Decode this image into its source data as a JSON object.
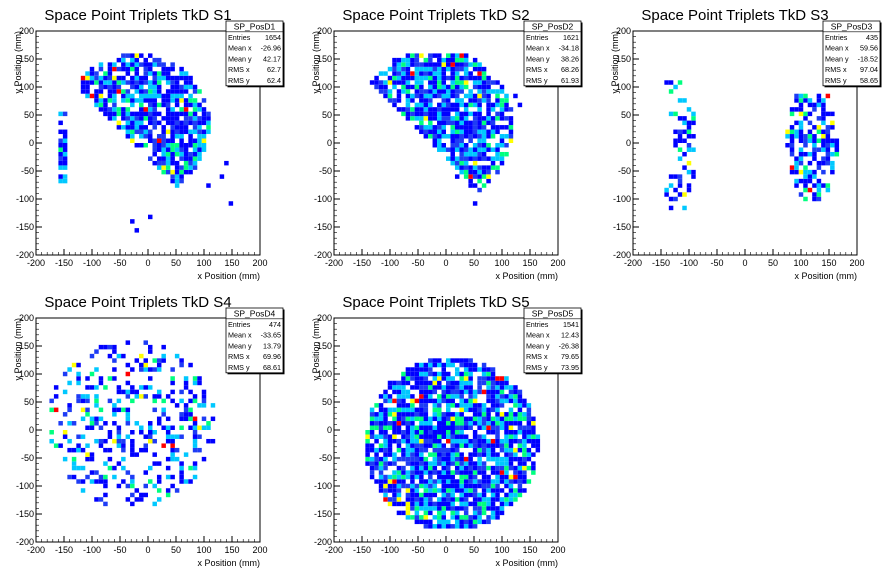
{
  "chart_data": [
    {
      "type": "heatmap",
      "histogram": "SP_PosD1",
      "title": "Space Point Triplets TkD S1",
      "xlabel": "x Position (mm)",
      "ylabel": "y Position (mm)",
      "xlim": [
        -200,
        200
      ],
      "ylim": [
        -200,
        200
      ],
      "xticks": [
        -200,
        -150,
        -100,
        -50,
        0,
        50,
        100,
        150,
        200
      ],
      "yticks": [
        -200,
        -150,
        -100,
        -50,
        0,
        50,
        100,
        150,
        200
      ],
      "stats": [
        {
          "label": "Entries",
          "value": "1654"
        },
        {
          "label": "Mean x",
          "value": "-26.96"
        },
        {
          "label": "Mean y",
          "value": "42.17"
        },
        {
          "label": "RMS x",
          "value": "62.7"
        },
        {
          "label": "RMS y",
          "value": "62.4"
        }
      ],
      "distribution": {
        "shape": "half-disk",
        "x_center": -20,
        "y_center": 30,
        "radius": 130,
        "upper_cut": 160,
        "edge_strip_x": [
          -160,
          -145
        ],
        "tail_points": [
          [
            110,
            -80
          ],
          [
            130,
            -60
          ],
          [
            140,
            -40
          ],
          [
            0,
            -130
          ],
          [
            -30,
            -140
          ],
          [
            -20,
            -160
          ],
          [
            150,
            -110
          ]
        ]
      }
    },
    {
      "type": "heatmap",
      "histogram": "SP_PosD2",
      "title": "Space Point Triplets TkD S2",
      "xlabel": "x Position (mm)",
      "ylabel": "y Position (mm)",
      "xlim": [
        -200,
        200
      ],
      "ylim": [
        -200,
        200
      ],
      "xticks": [
        -200,
        -150,
        -100,
        -50,
        0,
        50,
        100,
        150,
        200
      ],
      "yticks": [
        -200,
        -150,
        -100,
        -50,
        0,
        50,
        100,
        150,
        200
      ],
      "stats": [
        {
          "label": "Entries",
          "value": "1621"
        },
        {
          "label": "Mean x",
          "value": "-34.18"
        },
        {
          "label": "Mean y",
          "value": "38.26"
        },
        {
          "label": "RMS x",
          "value": "68.26"
        },
        {
          "label": "RMS y",
          "value": "61.93"
        }
      ],
      "distribution": {
        "shape": "half-disk",
        "x_center": -20,
        "y_center": 30,
        "radius": 140,
        "upper_cut": 160,
        "tail_points": [
          [
            20,
            -60
          ],
          [
            40,
            -80
          ],
          [
            50,
            -110
          ],
          [
            120,
            80
          ],
          [
            130,
            70
          ]
        ]
      }
    },
    {
      "type": "heatmap",
      "histogram": "SP_PosD3",
      "title": "Space Point Triplets TkD S3",
      "xlabel": "x Position (mm)",
      "ylabel": "y Position (mm)",
      "xlim": [
        -200,
        200
      ],
      "ylim": [
        -200,
        200
      ],
      "xticks": [
        -200,
        -150,
        -100,
        -50,
        0,
        50,
        100,
        150,
        200
      ],
      "yticks": [
        -200,
        -150,
        -100,
        -50,
        0,
        50,
        100,
        150,
        200
      ],
      "stats": [
        {
          "label": "Entries",
          "value": "435"
        },
        {
          "label": "Mean x",
          "value": "59.56"
        },
        {
          "label": "Mean y",
          "value": "-18.52"
        },
        {
          "label": "RMS x",
          "value": "97.04"
        },
        {
          "label": "RMS y",
          "value": "58.65"
        }
      ],
      "distribution": {
        "shape": "two-arcs",
        "left_arc_x": -110,
        "right_cluster_x": 120,
        "y_range": [
          -120,
          110
        ]
      }
    },
    {
      "type": "heatmap",
      "histogram": "SP_PosD4",
      "title": "Space Point Triplets TkD S4",
      "xlabel": "x Position (mm)",
      "ylabel": "y Position (mm)",
      "xlim": [
        -200,
        200
      ],
      "ylim": [
        -200,
        200
      ],
      "xticks": [
        -200,
        -150,
        -100,
        -50,
        0,
        50,
        100,
        150,
        200
      ],
      "yticks": [
        -200,
        -150,
        -100,
        -50,
        0,
        50,
        100,
        150,
        200
      ],
      "stats": [
        {
          "label": "Entries",
          "value": "474"
        },
        {
          "label": "Mean x",
          "value": "-33.65"
        },
        {
          "label": "Mean y",
          "value": "13.79"
        },
        {
          "label": "RMS x",
          "value": "69.96"
        },
        {
          "label": "RMS y",
          "value": "68.61"
        }
      ],
      "distribution": {
        "shape": "sparse-disk",
        "x_center": -30,
        "y_center": 10,
        "radius": 150
      }
    },
    {
      "type": "heatmap",
      "histogram": "SP_PosD5",
      "title": "Space Point Triplets TkD S5",
      "xlabel": "x Position (mm)",
      "ylabel": "y Position (mm)",
      "xlim": [
        -200,
        200
      ],
      "ylim": [
        -200,
        200
      ],
      "xticks": [
        -200,
        -150,
        -100,
        -50,
        0,
        50,
        100,
        150,
        200
      ],
      "yticks": [
        -200,
        -150,
        -100,
        -50,
        0,
        50,
        100,
        150,
        200
      ],
      "stats": [
        {
          "label": "Entries",
          "value": "1541"
        },
        {
          "label": "Mean x",
          "value": "12.43"
        },
        {
          "label": "Mean y",
          "value": "-26.38"
        },
        {
          "label": "RMS x",
          "value": "79.65"
        },
        {
          "label": "RMS y",
          "value": "73.95"
        }
      ],
      "distribution": {
        "shape": "disk",
        "x_center": 10,
        "y_center": -25,
        "radius": 155
      }
    }
  ],
  "colors": {
    "background": "#ffffff",
    "axis": "#000000",
    "palette": [
      "#0000ff",
      "#1e3cf5",
      "#00c8ff",
      "#00ff7f",
      "#ffff00",
      "#ff8000",
      "#ff0000"
    ]
  }
}
